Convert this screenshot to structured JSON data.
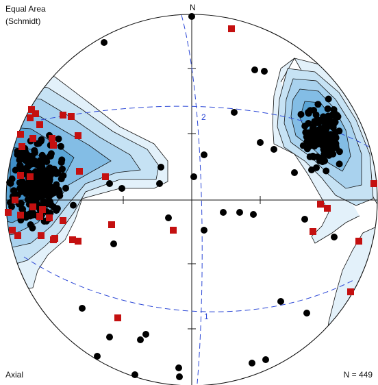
{
  "projection": {
    "name": "Equal Area",
    "variant": "(Schmidt)"
  },
  "mode": "Axial",
  "count_label": "N = 449",
  "north_label": "N",
  "great_circle_labels": [
    "2",
    "1"
  ],
  "colors": {
    "contour_fill_light": "#e3f1fa",
    "contour_fill_mid": "#a9d2ee",
    "contour_fill_dark": "#5aa5d6",
    "contour_line": "#111111",
    "great_circle": "#2b47d6",
    "point": "#000000",
    "square": "#c41010"
  },
  "chart_data": {
    "type": "scatter",
    "net": "Schmidt equal-area stereonet",
    "axial": true,
    "n": 449,
    "clusters": [
      {
        "name": "west",
        "trend_deg": 275,
        "plunge_deg": 5
      },
      {
        "name": "northeast",
        "trend_deg": 55,
        "plunge_deg": 20
      }
    ],
    "great_circles": [
      {
        "label": "2",
        "strike_deg": 10
      },
      {
        "label": "1",
        "strike_deg": 100
      }
    ]
  }
}
